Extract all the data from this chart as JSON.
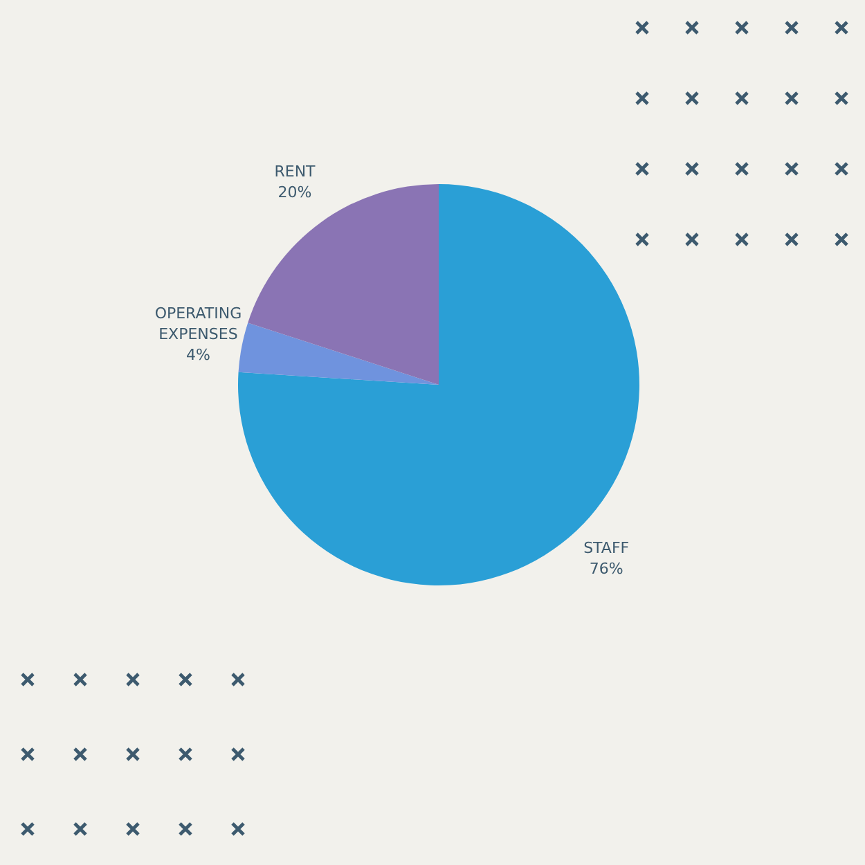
{
  "chart_data": {
    "type": "pie",
    "categories": [
      "STAFF",
      "OPERATING EXPENSES",
      "RENT"
    ],
    "values": [
      76,
      4,
      20
    ],
    "value_labels": [
      "76%",
      "4%",
      "20%"
    ],
    "colors": [
      "#2a9fd6",
      "#6f93de",
      "#8a74b4"
    ]
  }
}
